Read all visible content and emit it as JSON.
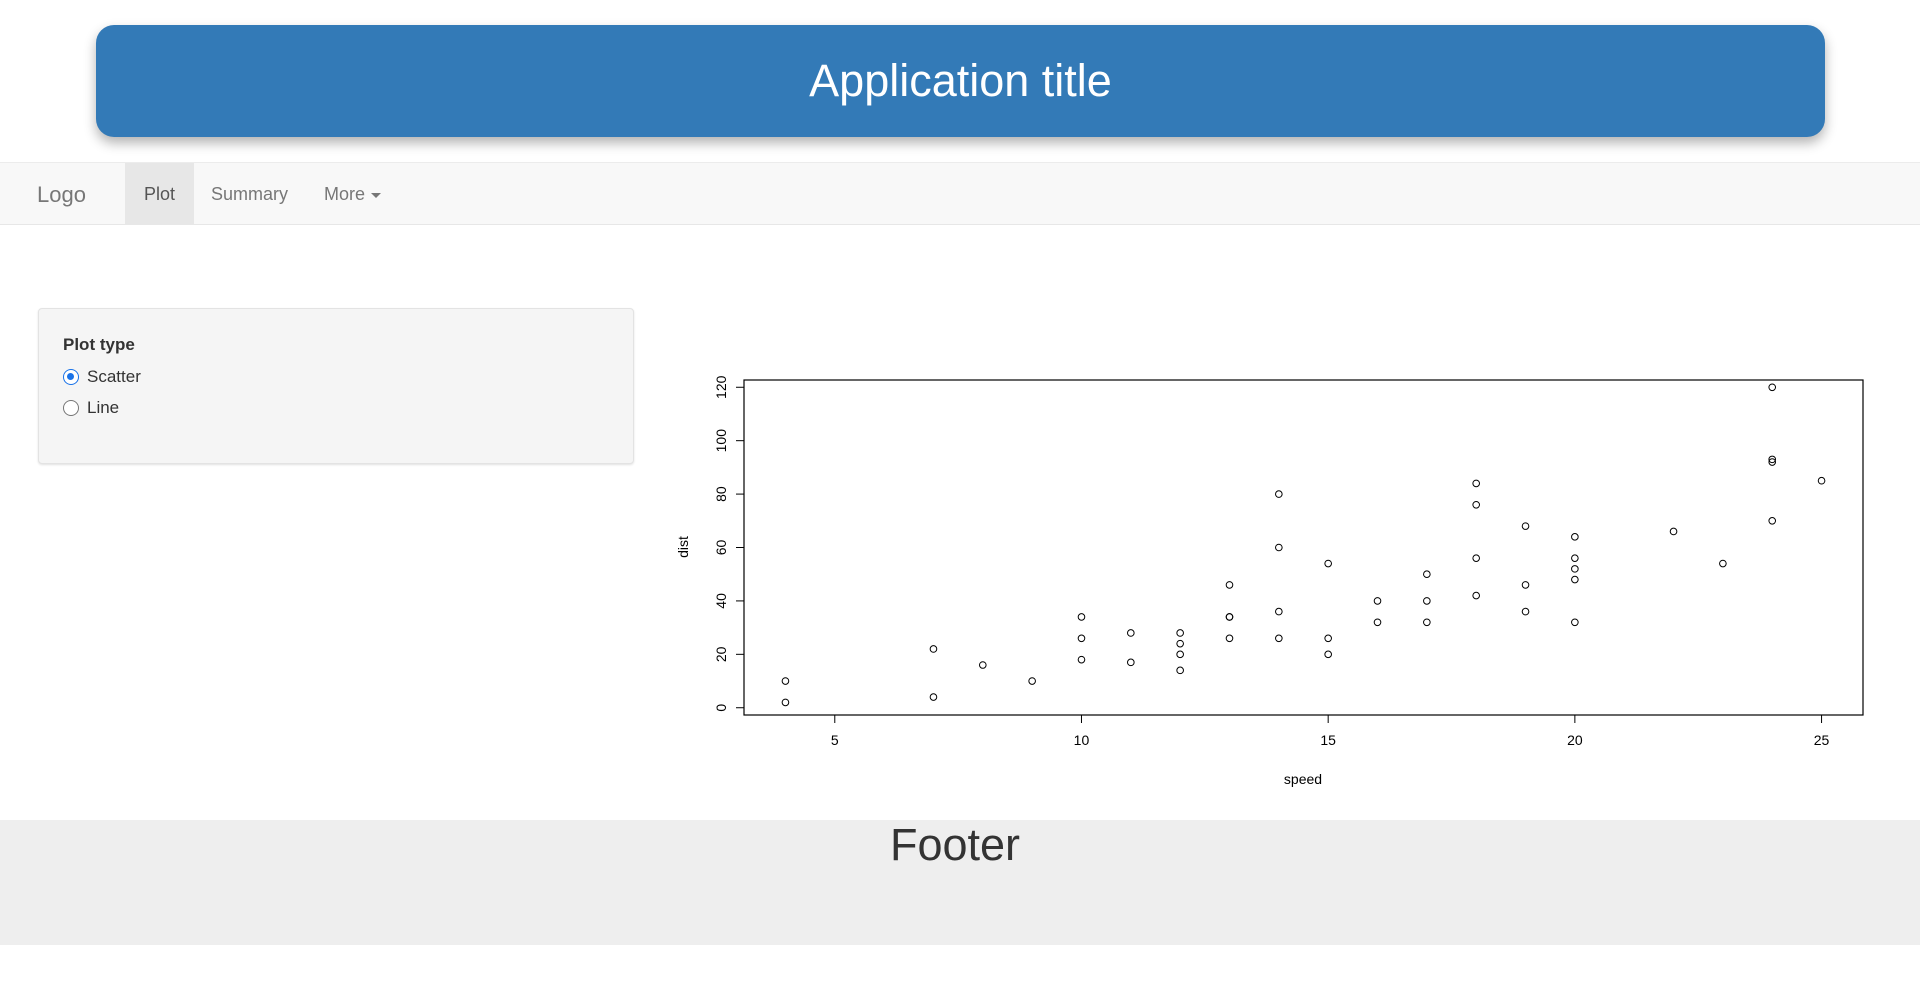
{
  "header": {
    "title": "Application title"
  },
  "navbar": {
    "brand": "Logo",
    "tabs": [
      {
        "label": "Plot",
        "active": true
      },
      {
        "label": "Summary",
        "active": false
      },
      {
        "label": "More",
        "active": false,
        "dropdown": true
      }
    ]
  },
  "sidebar": {
    "label": "Plot type",
    "options": [
      {
        "label": "Scatter",
        "checked": true
      },
      {
        "label": "Line",
        "checked": false
      }
    ]
  },
  "chart_data": {
    "type": "scatter",
    "xlabel": "speed",
    "ylabel": "dist",
    "xlim": [
      3.16,
      25.84
    ],
    "ylim": [
      -2.72,
      122.72
    ],
    "xticks": [
      5,
      10,
      15,
      20,
      25
    ],
    "yticks": [
      0,
      20,
      40,
      60,
      80,
      100,
      120
    ],
    "x": [
      4,
      4,
      7,
      7,
      8,
      9,
      10,
      10,
      10,
      11,
      11,
      12,
      12,
      12,
      12,
      13,
      13,
      13,
      13,
      14,
      14,
      14,
      14,
      15,
      15,
      15,
      16,
      16,
      17,
      17,
      17,
      18,
      18,
      18,
      18,
      19,
      19,
      19,
      20,
      20,
      20,
      20,
      20,
      22,
      23,
      24,
      24,
      24,
      24,
      25
    ],
    "y": [
      2,
      10,
      4,
      22,
      16,
      10,
      18,
      26,
      34,
      17,
      28,
      14,
      20,
      24,
      28,
      26,
      34,
      34,
      46,
      26,
      36,
      60,
      80,
      20,
      26,
      54,
      32,
      40,
      32,
      40,
      50,
      42,
      56,
      76,
      84,
      36,
      46,
      68,
      32,
      48,
      52,
      56,
      64,
      66,
      54,
      70,
      92,
      93,
      120,
      85
    ],
    "grid": false,
    "legend": "none"
  },
  "footer": {
    "text": "Footer"
  },
  "colors": {
    "primary": "#337ab7",
    "radio_accent": "#1a73e8",
    "footer_bg": "#eeeeee"
  }
}
